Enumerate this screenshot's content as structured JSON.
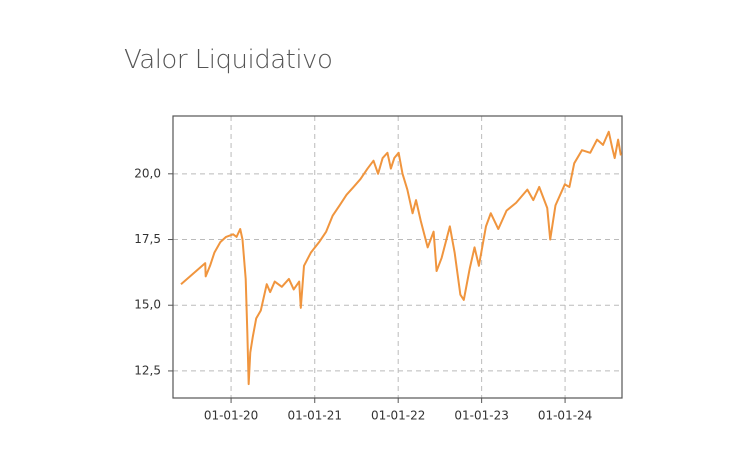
{
  "chart_data": {
    "type": "line",
    "title": "Valor Liquidativo",
    "x": [
      "2019-05-27",
      "2019-09-10",
      "2019-09-12",
      "2019-10-01",
      "2019-10-20",
      "2019-11-15",
      "2019-12-10",
      "2020-01-10",
      "2020-01-25",
      "2020-02-10",
      "2020-02-20",
      "2020-03-05",
      "2020-03-12",
      "2020-03-18",
      "2020-03-25",
      "2020-04-05",
      "2020-04-20",
      "2020-05-10",
      "2020-06-05",
      "2020-06-20",
      "2020-07-10",
      "2020-08-10",
      "2020-09-10",
      "2020-10-01",
      "2020-10-25",
      "2020-11-01",
      "2020-11-15",
      "2020-12-15",
      "2021-01-20",
      "2021-02-20",
      "2021-03-20",
      "2021-04-20",
      "2021-05-20",
      "2021-06-20",
      "2021-07-20",
      "2021-08-20",
      "2021-09-15",
      "2021-10-05",
      "2021-10-25",
      "2021-11-15",
      "2021-11-30",
      "2021-12-15",
      "2022-01-03",
      "2022-01-20",
      "2022-02-10",
      "2022-03-05",
      "2022-03-20",
      "2022-04-10",
      "2022-05-10",
      "2022-06-05",
      "2022-06-18",
      "2022-07-10",
      "2022-08-15",
      "2022-09-05",
      "2022-09-30",
      "2022-10-15",
      "2022-11-10",
      "2022-12-01",
      "2022-12-20",
      "2023-01-20",
      "2023-02-10",
      "2023-03-15",
      "2023-04-20",
      "2023-06-01",
      "2023-07-20",
      "2023-08-15",
      "2023-09-10",
      "2023-10-15",
      "2023-10-28",
      "2023-11-20",
      "2023-12-31",
      "2024-01-20",
      "2024-02-10",
      "2024-03-15",
      "2024-04-20",
      "2024-05-20",
      "2024-06-15",
      "2024-07-10",
      "2024-07-25",
      "2024-08-05",
      "2024-08-20",
      "2024-09-01"
    ],
    "series": [
      {
        "color": "#f0953e",
        "values": [
          15.8,
          16.6,
          16.1,
          16.5,
          17.0,
          17.4,
          17.6,
          17.7,
          17.6,
          17.9,
          17.5,
          16.0,
          14.0,
          12.0,
          13.2,
          13.8,
          14.5,
          14.8,
          15.8,
          15.5,
          15.9,
          15.7,
          16.0,
          15.6,
          15.9,
          14.9,
          16.5,
          17.0,
          17.4,
          17.8,
          18.4,
          18.8,
          19.2,
          19.5,
          19.8,
          20.2,
          20.5,
          20.0,
          20.6,
          20.8,
          20.2,
          20.6,
          20.8,
          20.0,
          19.4,
          18.5,
          19.0,
          18.2,
          17.2,
          17.8,
          16.3,
          16.8,
          18.0,
          17.0,
          15.4,
          15.2,
          16.4,
          17.2,
          16.5,
          18.0,
          18.5,
          17.9,
          18.6,
          18.9,
          19.4,
          19.0,
          19.5,
          18.7,
          17.5,
          18.8,
          19.6,
          19.5,
          20.4,
          20.9,
          20.8,
          21.3,
          21.1,
          21.6,
          21.0,
          20.6,
          21.3,
          20.7
        ]
      }
    ],
    "xlim": [
      "2019-04-22",
      "2024-09-06"
    ],
    "xticks": [
      {
        "value": "2020-01-01",
        "label": "01-01-20"
      },
      {
        "value": "2021-01-01",
        "label": "01-01-21"
      },
      {
        "value": "2022-01-01",
        "label": "01-01-22"
      },
      {
        "value": "2023-01-01",
        "label": "01-01-23"
      },
      {
        "value": "2024-01-01",
        "label": "01-01-24"
      }
    ],
    "ylim": [
      11.47,
      22.2
    ],
    "yticks": [
      {
        "value": 12.5,
        "label": "12,5"
      },
      {
        "value": 15,
        "label": "15,0"
      },
      {
        "value": 17.5,
        "label": "17,5"
      },
      {
        "value": 20,
        "label": "20,0"
      }
    ],
    "grid": true
  }
}
